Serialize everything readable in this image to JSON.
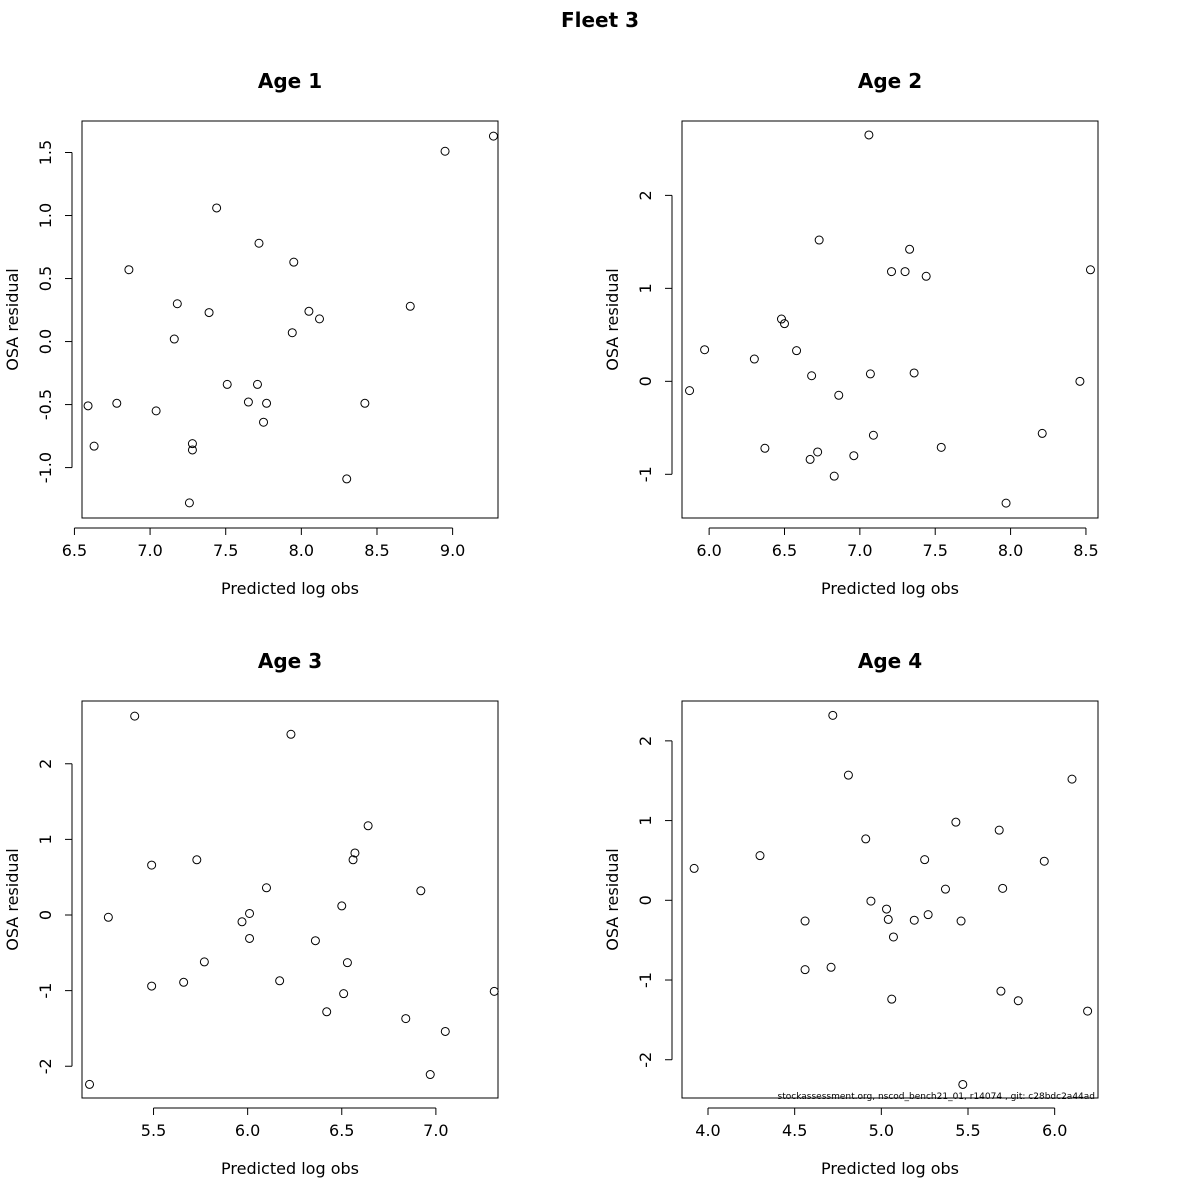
{
  "figure": {
    "title": "Fleet 3",
    "footnote": "stockassessment.org, nscod_bench21_01, r14074 , git: c28bdc2a44ad"
  },
  "chart_data": [
    {
      "type": "scatter",
      "title": "Age 1",
      "xlabel": "Predicted log obs",
      "ylabel": "OSA residual",
      "xlim": [
        6.55,
        9.3
      ],
      "ylim": [
        -1.4,
        1.75
      ],
      "xticks": [
        6.5,
        7.0,
        7.5,
        8.0,
        8.5,
        9.0
      ],
      "xtick_labels": [
        "6.5",
        "7.0",
        "7.5",
        "8.0",
        "8.5",
        "9.0"
      ],
      "yticks": [
        -1.0,
        -0.5,
        0.0,
        0.5,
        1.0,
        1.5
      ],
      "ytick_labels": [
        "-1.0",
        "-0.5",
        "0.0",
        "0.5",
        "1.0",
        "1.5"
      ],
      "points": [
        [
          6.59,
          -0.51
        ],
        [
          6.63,
          -0.83
        ],
        [
          6.78,
          -0.49
        ],
        [
          6.86,
          0.57
        ],
        [
          7.04,
          -0.55
        ],
        [
          7.16,
          0.02
        ],
        [
          7.18,
          0.3
        ],
        [
          7.28,
          -0.81
        ],
        [
          7.28,
          -0.86
        ],
        [
          7.26,
          -1.28
        ],
        [
          7.39,
          0.23
        ],
        [
          7.44,
          1.06
        ],
        [
          7.51,
          -0.34
        ],
        [
          7.65,
          -0.48
        ],
        [
          7.71,
          -0.34
        ],
        [
          7.72,
          0.78
        ],
        [
          7.75,
          -0.64
        ],
        [
          7.77,
          -0.49
        ],
        [
          7.94,
          0.07
        ],
        [
          7.95,
          0.63
        ],
        [
          8.05,
          0.24
        ],
        [
          8.12,
          0.18
        ],
        [
          8.3,
          -1.09
        ],
        [
          8.42,
          -0.49
        ],
        [
          8.72,
          0.28
        ],
        [
          8.95,
          1.51
        ],
        [
          9.27,
          1.63
        ]
      ]
    },
    {
      "type": "scatter",
      "title": "Age 2",
      "xlabel": "Predicted log obs",
      "ylabel": "OSA residual",
      "xlim": [
        5.82,
        8.58
      ],
      "ylim": [
        -1.47,
        2.8
      ],
      "xticks": [
        6.0,
        6.5,
        7.0,
        7.5,
        8.0,
        8.5
      ],
      "xtick_labels": [
        "6.0",
        "6.5",
        "7.0",
        "7.5",
        "8.0",
        "8.5"
      ],
      "yticks": [
        -1,
        0,
        1,
        2
      ],
      "ytick_labels": [
        "-1",
        "0",
        "1",
        "2"
      ],
      "points": [
        [
          5.87,
          -0.1
        ],
        [
          5.97,
          0.34
        ],
        [
          6.3,
          0.24
        ],
        [
          6.37,
          -0.72
        ],
        [
          6.48,
          0.67
        ],
        [
          6.5,
          0.62
        ],
        [
          6.58,
          0.33
        ],
        [
          6.67,
          -0.84
        ],
        [
          6.68,
          0.06
        ],
        [
          6.72,
          -0.76
        ],
        [
          6.73,
          1.52
        ],
        [
          6.83,
          -1.02
        ],
        [
          6.86,
          -0.15
        ],
        [
          6.96,
          -0.8
        ],
        [
          7.06,
          2.65
        ],
        [
          7.07,
          0.08
        ],
        [
          7.09,
          -0.58
        ],
        [
          7.21,
          1.18
        ],
        [
          7.3,
          1.18
        ],
        [
          7.33,
          1.42
        ],
        [
          7.36,
          0.09
        ],
        [
          7.44,
          1.13
        ],
        [
          7.54,
          -0.71
        ],
        [
          7.97,
          -1.31
        ],
        [
          8.21,
          -0.56
        ],
        [
          8.46,
          0.0
        ],
        [
          8.53,
          1.2
        ]
      ]
    },
    {
      "type": "scatter",
      "title": "Age 3",
      "xlabel": "Predicted log obs",
      "ylabel": "OSA residual",
      "xlim": [
        5.12,
        7.33
      ],
      "ylim": [
        -2.42,
        2.83
      ],
      "xticks": [
        5.5,
        6.0,
        6.5,
        7.0
      ],
      "xtick_labels": [
        "5.5",
        "6.0",
        "6.5",
        "7.0"
      ],
      "yticks": [
        -2,
        -1,
        0,
        1,
        2
      ],
      "ytick_labels": [
        "-2",
        "-1",
        "0",
        "1",
        "2"
      ],
      "points": [
        [
          5.16,
          -2.24
        ],
        [
          5.26,
          -0.03
        ],
        [
          5.4,
          2.63
        ],
        [
          5.49,
          0.66
        ],
        [
          5.49,
          -0.94
        ],
        [
          5.66,
          -0.89
        ],
        [
          5.73,
          0.73
        ],
        [
          5.77,
          -0.62
        ],
        [
          5.97,
          -0.09
        ],
        [
          6.01,
          0.02
        ],
        [
          6.01,
          -0.31
        ],
        [
          6.1,
          0.36
        ],
        [
          6.17,
          -0.87
        ],
        [
          6.23,
          2.39
        ],
        [
          6.36,
          -0.34
        ],
        [
          6.42,
          -1.28
        ],
        [
          6.5,
          0.12
        ],
        [
          6.51,
          -1.04
        ],
        [
          6.53,
          -0.63
        ],
        [
          6.56,
          0.73
        ],
        [
          6.57,
          0.82
        ],
        [
          6.64,
          1.18
        ],
        [
          6.84,
          -1.37
        ],
        [
          6.92,
          0.32
        ],
        [
          6.97,
          -2.11
        ],
        [
          7.05,
          -1.54
        ],
        [
          7.31,
          -1.01
        ]
      ]
    },
    {
      "type": "scatter",
      "title": "Age 4",
      "xlabel": "Predicted log obs",
      "ylabel": "OSA residual",
      "xlim": [
        3.85,
        6.25
      ],
      "ylim": [
        -2.48,
        2.5
      ],
      "xticks": [
        4.0,
        4.5,
        5.0,
        5.5,
        6.0
      ],
      "xtick_labels": [
        "4.0",
        "4.5",
        "5.0",
        "5.5",
        "6.0"
      ],
      "yticks": [
        -2,
        -1,
        0,
        1,
        2
      ],
      "ytick_labels": [
        "-2",
        "-1",
        "0",
        "1",
        "2"
      ],
      "points": [
        [
          3.92,
          0.4
        ],
        [
          4.3,
          0.56
        ],
        [
          4.56,
          -0.87
        ],
        [
          4.56,
          -0.26
        ],
        [
          4.71,
          -0.84
        ],
        [
          4.72,
          2.32
        ],
        [
          4.81,
          1.57
        ],
        [
          4.91,
          0.77
        ],
        [
          4.94,
          -0.01
        ],
        [
          5.03,
          -0.11
        ],
        [
          5.04,
          -0.24
        ],
        [
          5.06,
          -1.24
        ],
        [
          5.07,
          -0.46
        ],
        [
          5.19,
          -0.25
        ],
        [
          5.25,
          0.51
        ],
        [
          5.27,
          -0.18
        ],
        [
          5.37,
          0.14
        ],
        [
          5.43,
          0.98
        ],
        [
          5.46,
          -0.26
        ],
        [
          5.47,
          -2.31
        ],
        [
          5.68,
          0.88
        ],
        [
          5.69,
          -1.14
        ],
        [
          5.7,
          0.15
        ],
        [
          5.79,
          -1.26
        ],
        [
          5.94,
          0.49
        ],
        [
          6.1,
          1.52
        ],
        [
          6.19,
          -1.39
        ]
      ]
    }
  ]
}
